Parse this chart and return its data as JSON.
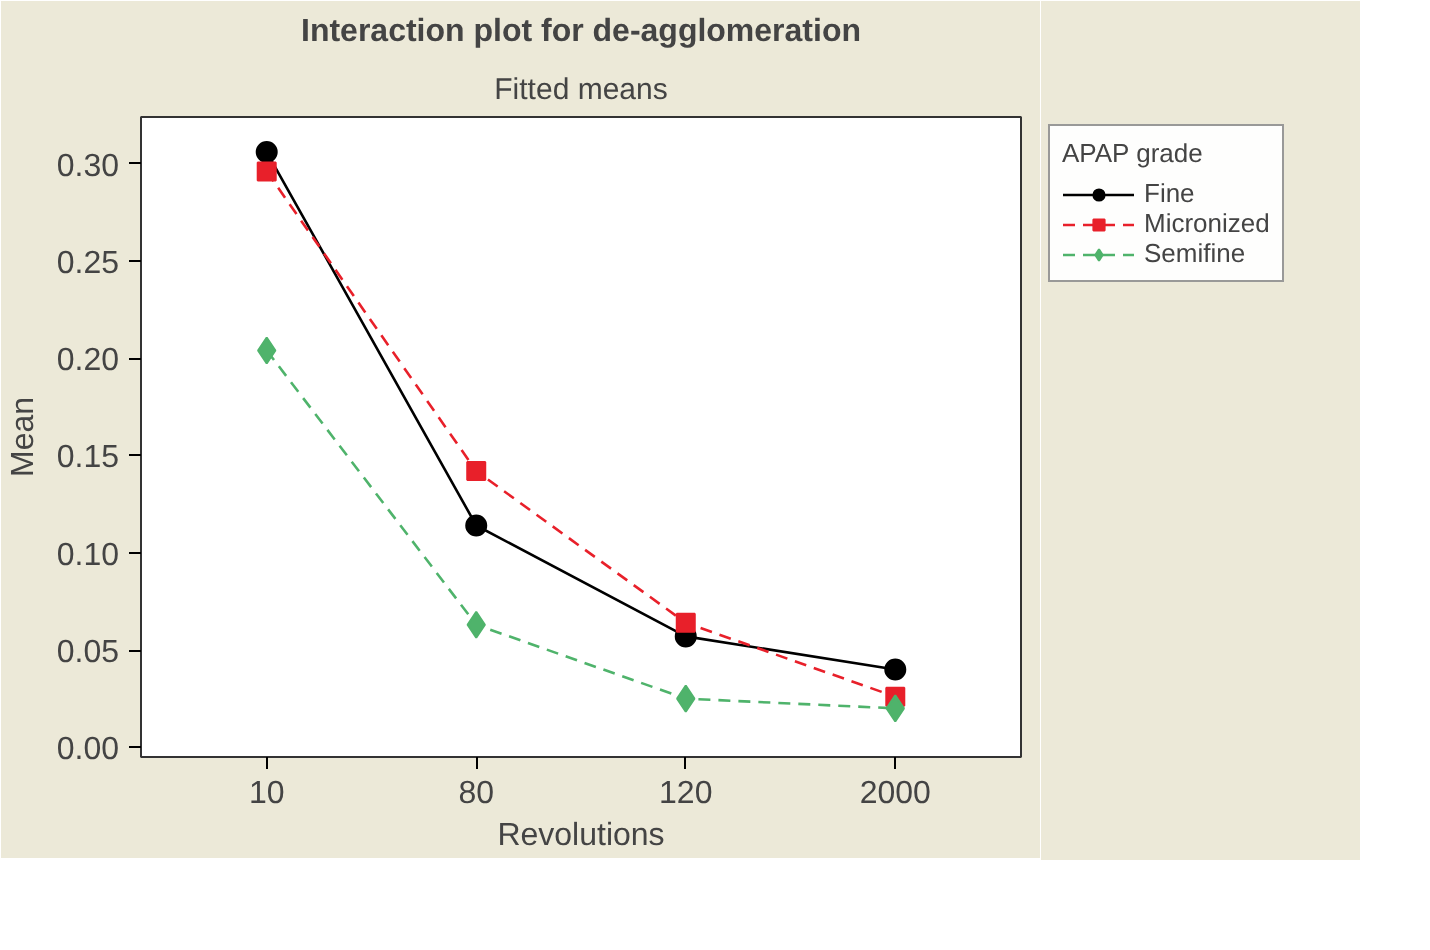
{
  "chart_data": {
    "type": "line",
    "title": "Interaction plot for de-agglomeration",
    "subtitle": "Fitted means",
    "xlabel": "Revolutions",
    "ylabel": "Mean",
    "legend_title": "APAP grade",
    "categories": [
      "10",
      "80",
      "120",
      "2000"
    ],
    "series": [
      {
        "name": "Fine",
        "color": "#000000",
        "marker": "circle",
        "line_style": "solid",
        "values": [
          0.306,
          0.114,
          0.057,
          0.04
        ]
      },
      {
        "name": "Micronized",
        "color": "#e8202a",
        "marker": "square",
        "line_style": "dashed",
        "values": [
          0.296,
          0.142,
          0.064,
          0.026
        ]
      },
      {
        "name": "Semifine",
        "color": "#4fb36b",
        "marker": "diamond",
        "line_style": "dashed",
        "values": [
          0.204,
          0.063,
          0.025,
          0.02
        ]
      }
    ],
    "ylim": [
      -0.005,
      0.324
    ],
    "yticks": [
      {
        "value": 0,
        "label": "0.00"
      },
      {
        "value": 0.05,
        "label": "0.05"
      },
      {
        "value": 0.1,
        "label": "0.10"
      },
      {
        "value": 0.15,
        "label": "0.15"
      },
      {
        "value": 0.2,
        "label": "0.20"
      },
      {
        "value": 0.25,
        "label": "0.25"
      },
      {
        "value": 0.3,
        "label": "0.30"
      }
    ],
    "grid": false,
    "legend": "top right"
  }
}
